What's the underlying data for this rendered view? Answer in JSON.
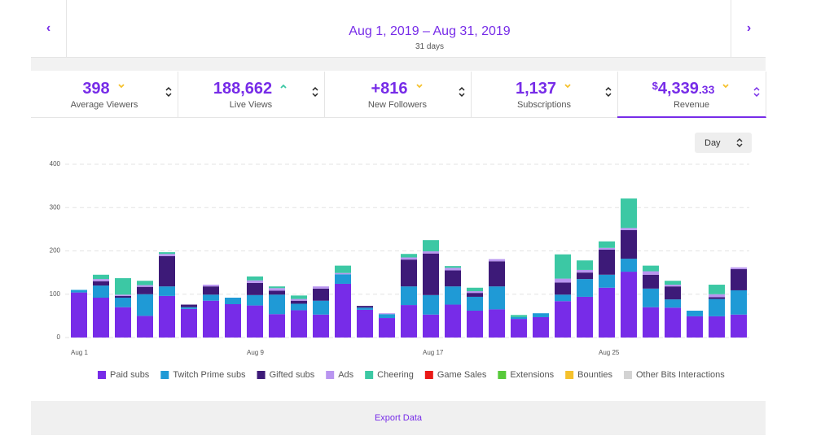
{
  "header": {
    "date_range": "Aug 1, 2019 – Aug 31, 2019",
    "days": "31 days"
  },
  "stats": [
    {
      "value": "398",
      "label": "Average Viewers"
    },
    {
      "value": "188,662",
      "label": "Live Views"
    },
    {
      "value": "+816",
      "label": "New Followers"
    },
    {
      "value": "1,137",
      "label": "Subscriptions"
    },
    {
      "prefix": "$",
      "value": "4,339",
      "suffix": ".33",
      "label": "Revenue"
    }
  ],
  "interval": "Day",
  "footer": "Export Data",
  "chart_data": {
    "type": "bar",
    "stacked": true,
    "categories": [
      "Aug 1",
      null,
      null,
      null,
      null,
      null,
      null,
      null,
      "Aug 9",
      null,
      null,
      null,
      null,
      null,
      null,
      null,
      "Aug 17",
      null,
      null,
      null,
      null,
      null,
      null,
      null,
      "Aug 25",
      null,
      null,
      null,
      null,
      null,
      null
    ],
    "series": [
      {
        "name": "Paid subs",
        "color": "#772ce8",
        "values": [
          104,
          92,
          70,
          50,
          96,
          66,
          85,
          77,
          74,
          54,
          63,
          53,
          124,
          64,
          45,
          75,
          53,
          76,
          62,
          65,
          43,
          47,
          84,
          94,
          115,
          152,
          70,
          69,
          49,
          49,
          53
        ]
      },
      {
        "name": "Twitch Prime subs",
        "color": "#1f9ad6",
        "values": [
          6,
          28,
          22,
          50,
          22,
          4,
          14,
          15,
          24,
          45,
          15,
          32,
          22,
          5,
          9,
          43,
          45,
          42,
          32,
          53,
          4,
          9,
          15,
          41,
          30,
          30,
          43,
          19,
          13,
          40,
          56
        ]
      },
      {
        "name": "Gifted subs",
        "color": "#3d1a78",
        "values": [
          0,
          10,
          4,
          17,
          70,
          6,
          19,
          0,
          28,
          9,
          7,
          28,
          0,
          4,
          0,
          62,
          96,
          37,
          9,
          58,
          0,
          0,
          28,
          15,
          58,
          66,
          32,
          30,
          0,
          4,
          49
        ]
      },
      {
        "name": "Ads",
        "color": "#b995f0",
        "values": [
          0,
          5,
          3,
          4,
          5,
          0,
          4,
          0,
          6,
          6,
          4,
          5,
          3,
          0,
          2,
          5,
          5,
          6,
          4,
          5,
          0,
          0,
          9,
          6,
          4,
          5,
          8,
          4,
          0,
          7,
          4
        ]
      },
      {
        "name": "Cheering",
        "color": "#3cc8a4",
        "values": [
          0,
          10,
          38,
          10,
          4,
          0,
          0,
          0,
          9,
          4,
          8,
          0,
          17,
          0,
          0,
          8,
          26,
          4,
          8,
          0,
          5,
          0,
          56,
          22,
          15,
          68,
          13,
          9,
          0,
          22,
          0
        ]
      },
      {
        "name": "Game Sales",
        "color": "#e91916",
        "values": [
          0,
          0,
          0,
          0,
          0,
          0,
          0,
          0,
          0,
          0,
          0,
          0,
          0,
          0,
          0,
          0,
          0,
          0,
          0,
          0,
          0,
          0,
          0,
          0,
          0,
          0,
          0,
          0,
          0,
          0,
          0
        ]
      },
      {
        "name": "Extensions",
        "color": "#57c93a",
        "values": [
          0,
          0,
          0,
          0,
          0,
          0,
          0,
          0,
          0,
          0,
          0,
          0,
          0,
          0,
          0,
          0,
          0,
          0,
          0,
          0,
          0,
          0,
          0,
          0,
          0,
          0,
          0,
          0,
          0,
          0,
          0
        ]
      },
      {
        "name": "Bounties",
        "color": "#f5c12c",
        "values": [
          0,
          0,
          0,
          0,
          0,
          0,
          0,
          0,
          0,
          0,
          0,
          0,
          0,
          0,
          0,
          0,
          0,
          0,
          0,
          0,
          0,
          0,
          0,
          0,
          0,
          0,
          0,
          0,
          0,
          0,
          0
        ]
      },
      {
        "name": "Other Bits Interactions",
        "color": "#d3d3d3",
        "values": [
          0,
          0,
          0,
          0,
          0,
          0,
          0,
          0,
          0,
          0,
          0,
          0,
          0,
          0,
          0,
          0,
          0,
          0,
          0,
          0,
          0,
          0,
          0,
          0,
          0,
          0,
          0,
          0,
          0,
          0,
          0
        ]
      }
    ],
    "ylim": [
      0,
      400
    ],
    "yticks": [
      0,
      100,
      200,
      300,
      400
    ],
    "grid": true
  }
}
